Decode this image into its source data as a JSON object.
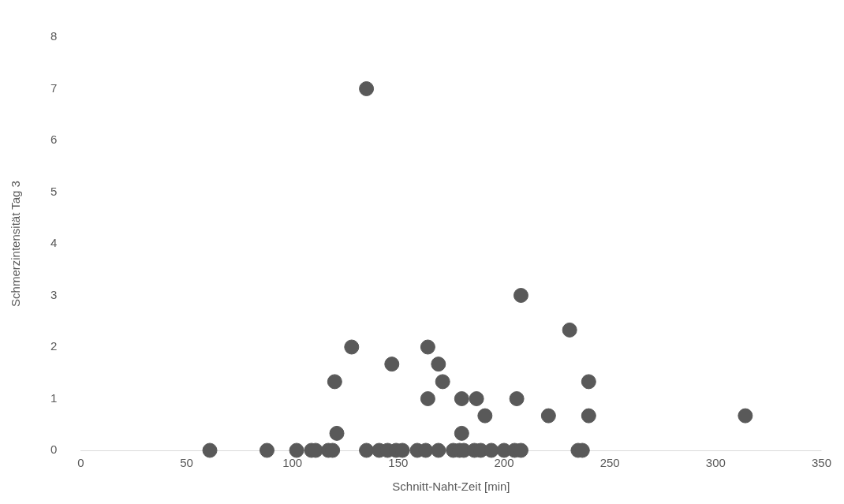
{
  "chart_data": {
    "type": "scatter",
    "xlabel": "Schnitt-Naht-Zeit [min]",
    "ylabel": "Schmerzintensität Tag 3",
    "xlim": [
      0,
      350
    ],
    "xticks": [
      0,
      50,
      100,
      150,
      200,
      250,
      300,
      350
    ],
    "ylim": [
      0,
      8
    ],
    "yticks": [
      0,
      1,
      2,
      3,
      4,
      5,
      6,
      7,
      8
    ],
    "grid": false,
    "legend": false,
    "marker": "circle",
    "series": [
      {
        "color": "#595959",
        "x": [
          61,
          88,
          102,
          109,
          111,
          117,
          119,
          135,
          141,
          145,
          149,
          152,
          159,
          163,
          169,
          176,
          179,
          181,
          186,
          189,
          194,
          200,
          205,
          208,
          235,
          237,
          135,
          208,
          231,
          128,
          164,
          147,
          169,
          120,
          171,
          240,
          164,
          180,
          187,
          206,
          191,
          221,
          240,
          314,
          121,
          180
        ],
        "values": [
          0,
          0,
          0,
          0,
          0,
          0,
          0,
          0,
          0,
          0,
          0,
          0,
          0,
          0,
          0,
          0,
          0,
          0,
          0,
          0,
          0,
          0,
          0,
          0,
          0,
          0,
          7,
          3,
          2.33,
          2,
          2,
          1.67,
          1.67,
          1.33,
          1.33,
          1.33,
          1,
          1,
          1,
          1,
          0.67,
          0.67,
          0.67,
          0.67,
          0.33,
          0.33
        ]
      }
    ]
  }
}
